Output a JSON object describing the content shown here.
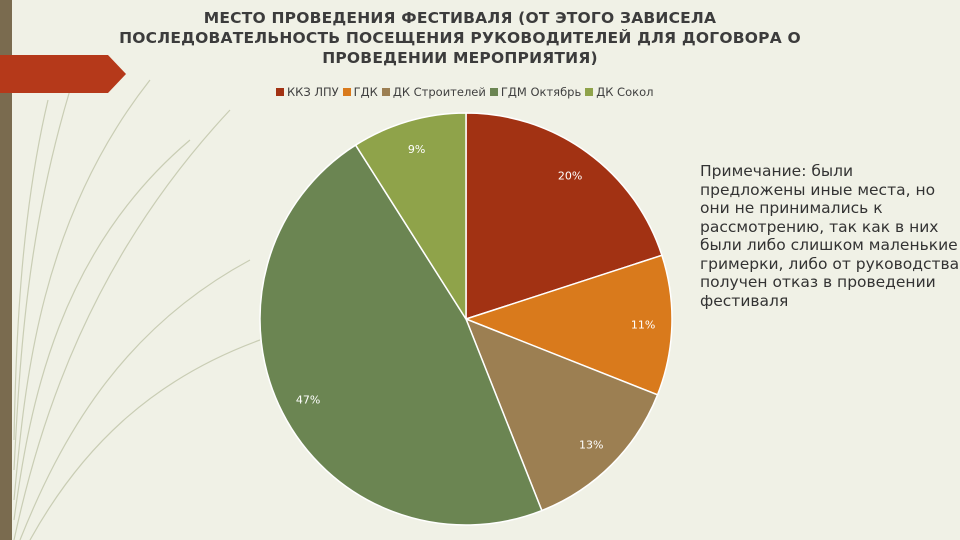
{
  "chart_data": {
    "type": "pie",
    "title": "МЕСТО ПРОВЕДЕНИЯ ФЕСТИВАЛЯ (ОТ ЭТОГО ЗАВИСЕЛА ПОСЛЕДОВАТЕЛЬНОСТЬ ПОСЕЩЕНИЯ РУКОВОДИТЕЛЕЙ ДЛЯ ДОГОВОРА О ПРОВЕДЕНИИ МЕРОПРИЯТИЯ)",
    "legend_position": "top",
    "categories": [
      "ККЗ ЛПУ",
      "ГДК",
      "ДК Строителей",
      "ГДМ Октябрь",
      "ДК Сокол"
    ],
    "values": [
      20,
      11,
      13,
      47,
      9
    ],
    "labels": [
      "20%",
      "11%",
      "13%",
      "47%",
      "9%"
    ],
    "colors": [
      "#a23213",
      "#d97a1c",
      "#9c7f52",
      "#6b8552",
      "#8fa34a"
    ]
  },
  "note": "Примечание: были предложены иные места, но они не принимались к рассмотрению, так как в них были либо слишком маленькие гримерки, либо от руководства получен отказ в проведении фестиваля",
  "colors": {
    "background": "#f0f1e6",
    "sidebar": "#7a6b4f",
    "accent": "#b5391a"
  }
}
